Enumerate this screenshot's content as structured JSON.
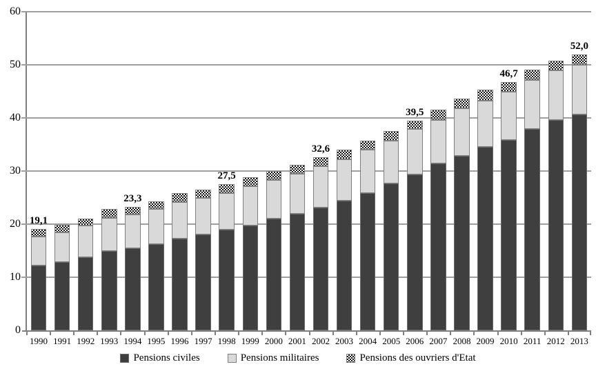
{
  "chart_data": {
    "type": "bar",
    "stacked": true,
    "title": "",
    "xlabel": "",
    "ylabel": "",
    "categories": [
      "1990",
      "1991",
      "1992",
      "1993",
      "1994",
      "1995",
      "1996",
      "1997",
      "1998",
      "1999",
      "2000",
      "2001",
      "2002",
      "2003",
      "2004",
      "2005",
      "2006",
      "2007",
      "2008",
      "2009",
      "2010",
      "2011",
      "2012",
      "2013"
    ],
    "series": [
      {
        "name": "Pensions civiles",
        "style": "solid",
        "color": "#3f3f3f",
        "values": [
          12.2,
          12.9,
          13.8,
          15.0,
          15.5,
          16.3,
          17.3,
          18.1,
          18.9,
          19.8,
          21.1,
          22.0,
          23.1,
          24.4,
          25.9,
          27.6,
          29.4,
          31.4,
          32.9,
          34.6,
          35.9,
          37.9,
          39.6,
          40.6
        ]
      },
      {
        "name": "Pensions militaires",
        "style": "solid",
        "color": "#d9d9d9",
        "values": [
          5.5,
          5.6,
          6.0,
          6.2,
          6.3,
          6.6,
          6.9,
          6.8,
          7.0,
          7.3,
          7.2,
          7.5,
          7.8,
          7.8,
          8.1,
          8.1,
          8.5,
          8.2,
          8.9,
          8.7,
          9.0,
          9.2,
          9.3,
          9.4
        ]
      },
      {
        "name": "Pensions des ouvriers d'Etat",
        "style": "checker",
        "color": "#141414",
        "values": [
          1.4,
          1.4,
          1.3,
          1.6,
          1.5,
          1.4,
          1.6,
          1.6,
          1.6,
          1.7,
          1.7,
          1.7,
          1.7,
          1.8,
          1.7,
          1.9,
          1.6,
          2.0,
          1.9,
          2.0,
          1.8,
          2.0,
          1.9,
          2.0
        ]
      }
    ],
    "totals": [
      19.1,
      19.9,
      21.1,
      22.8,
      23.3,
      24.3,
      25.8,
      26.5,
      27.5,
      28.8,
      30.0,
      31.2,
      32.6,
      34.0,
      35.7,
      37.6,
      39.5,
      41.6,
      43.7,
      45.3,
      46.7,
      49.1,
      50.8,
      52.0
    ],
    "callouts": [
      {
        "category": "1990",
        "label": "19,1"
      },
      {
        "category": "1994",
        "label": "23,3"
      },
      {
        "category": "1998",
        "label": "27,5"
      },
      {
        "category": "2002",
        "label": "32,6"
      },
      {
        "category": "2006",
        "label": "39,5"
      },
      {
        "category": "2010",
        "label": "46,7"
      },
      {
        "category": "2013",
        "label": "52,0"
      }
    ],
    "ylim": [
      0,
      60
    ],
    "yticks": [
      0,
      10,
      20,
      30,
      40,
      50,
      60
    ],
    "grid": true,
    "legend_position": "bottom",
    "colors": {
      "grid": "#9e9e9e",
      "axis": "#7f7f7f",
      "text": "#000000",
      "background": "#ffffff"
    }
  }
}
